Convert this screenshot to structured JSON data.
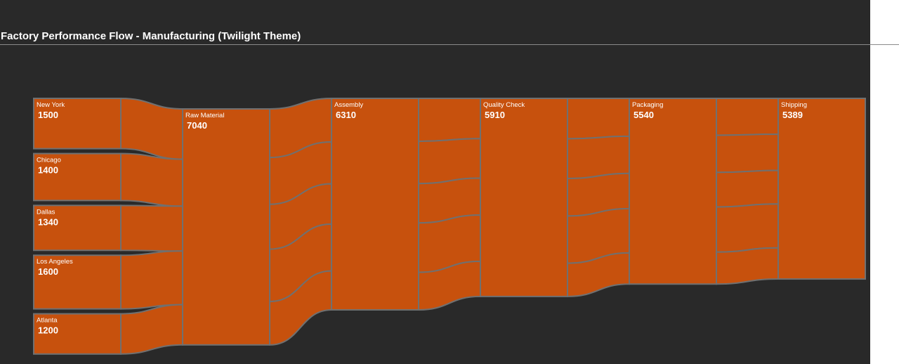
{
  "page": {
    "title": "Factory Performance Flow - Manufacturing (Twilight Theme)"
  },
  "colors": {
    "background": "#292929",
    "node_fill": "#C7510D",
    "stroke": "#707070",
    "text": "#ffffff"
  },
  "chart_data": {
    "type": "sankey",
    "title": "Factory Performance Flow - Manufacturing (Twilight Theme)",
    "nodes": [
      {
        "id": "new_york",
        "label": "New York",
        "value": 1500,
        "column": 0
      },
      {
        "id": "chicago",
        "label": "Chicago",
        "value": 1400,
        "column": 0
      },
      {
        "id": "dallas",
        "label": "Dallas",
        "value": 1340,
        "column": 0
      },
      {
        "id": "los_angeles",
        "label": "Los Angeles",
        "value": 1600,
        "column": 0
      },
      {
        "id": "atlanta",
        "label": "Atlanta",
        "value": 1200,
        "column": 0
      },
      {
        "id": "raw_material",
        "label": "Raw Material",
        "value": 7040,
        "column": 1
      },
      {
        "id": "assembly",
        "label": "Assembly",
        "value": 6310,
        "column": 2
      },
      {
        "id": "quality_check",
        "label": "Quality Check",
        "value": 5910,
        "column": 3
      },
      {
        "id": "packaging",
        "label": "Packaging",
        "value": 5540,
        "column": 4
      },
      {
        "id": "shipping",
        "label": "Shipping",
        "value": 5389,
        "column": 5
      }
    ],
    "links": [
      {
        "source": "new_york",
        "target": "raw_material",
        "value": 1500
      },
      {
        "source": "chicago",
        "target": "raw_material",
        "value": 1400
      },
      {
        "source": "dallas",
        "target": "raw_material",
        "value": 1340
      },
      {
        "source": "los_angeles",
        "target": "raw_material",
        "value": 1600
      },
      {
        "source": "atlanta",
        "target": "raw_material",
        "value": 1200
      },
      {
        "source": "raw_material",
        "target": "assembly",
        "segments": [
          1300,
          1250,
          1200,
          1400,
          1160
        ]
      },
      {
        "source": "assembly",
        "target": "quality_check",
        "segments": [
          1200,
          1180,
          1100,
          1380,
          1050
        ]
      },
      {
        "source": "quality_check",
        "target": "packaging",
        "segments": [
          1130,
          1110,
          1050,
          1320,
          930
        ]
      },
      {
        "source": "packaging",
        "target": "shipping",
        "segments": [
          1070,
          1080,
          1000,
          1310,
          929
        ]
      }
    ]
  }
}
